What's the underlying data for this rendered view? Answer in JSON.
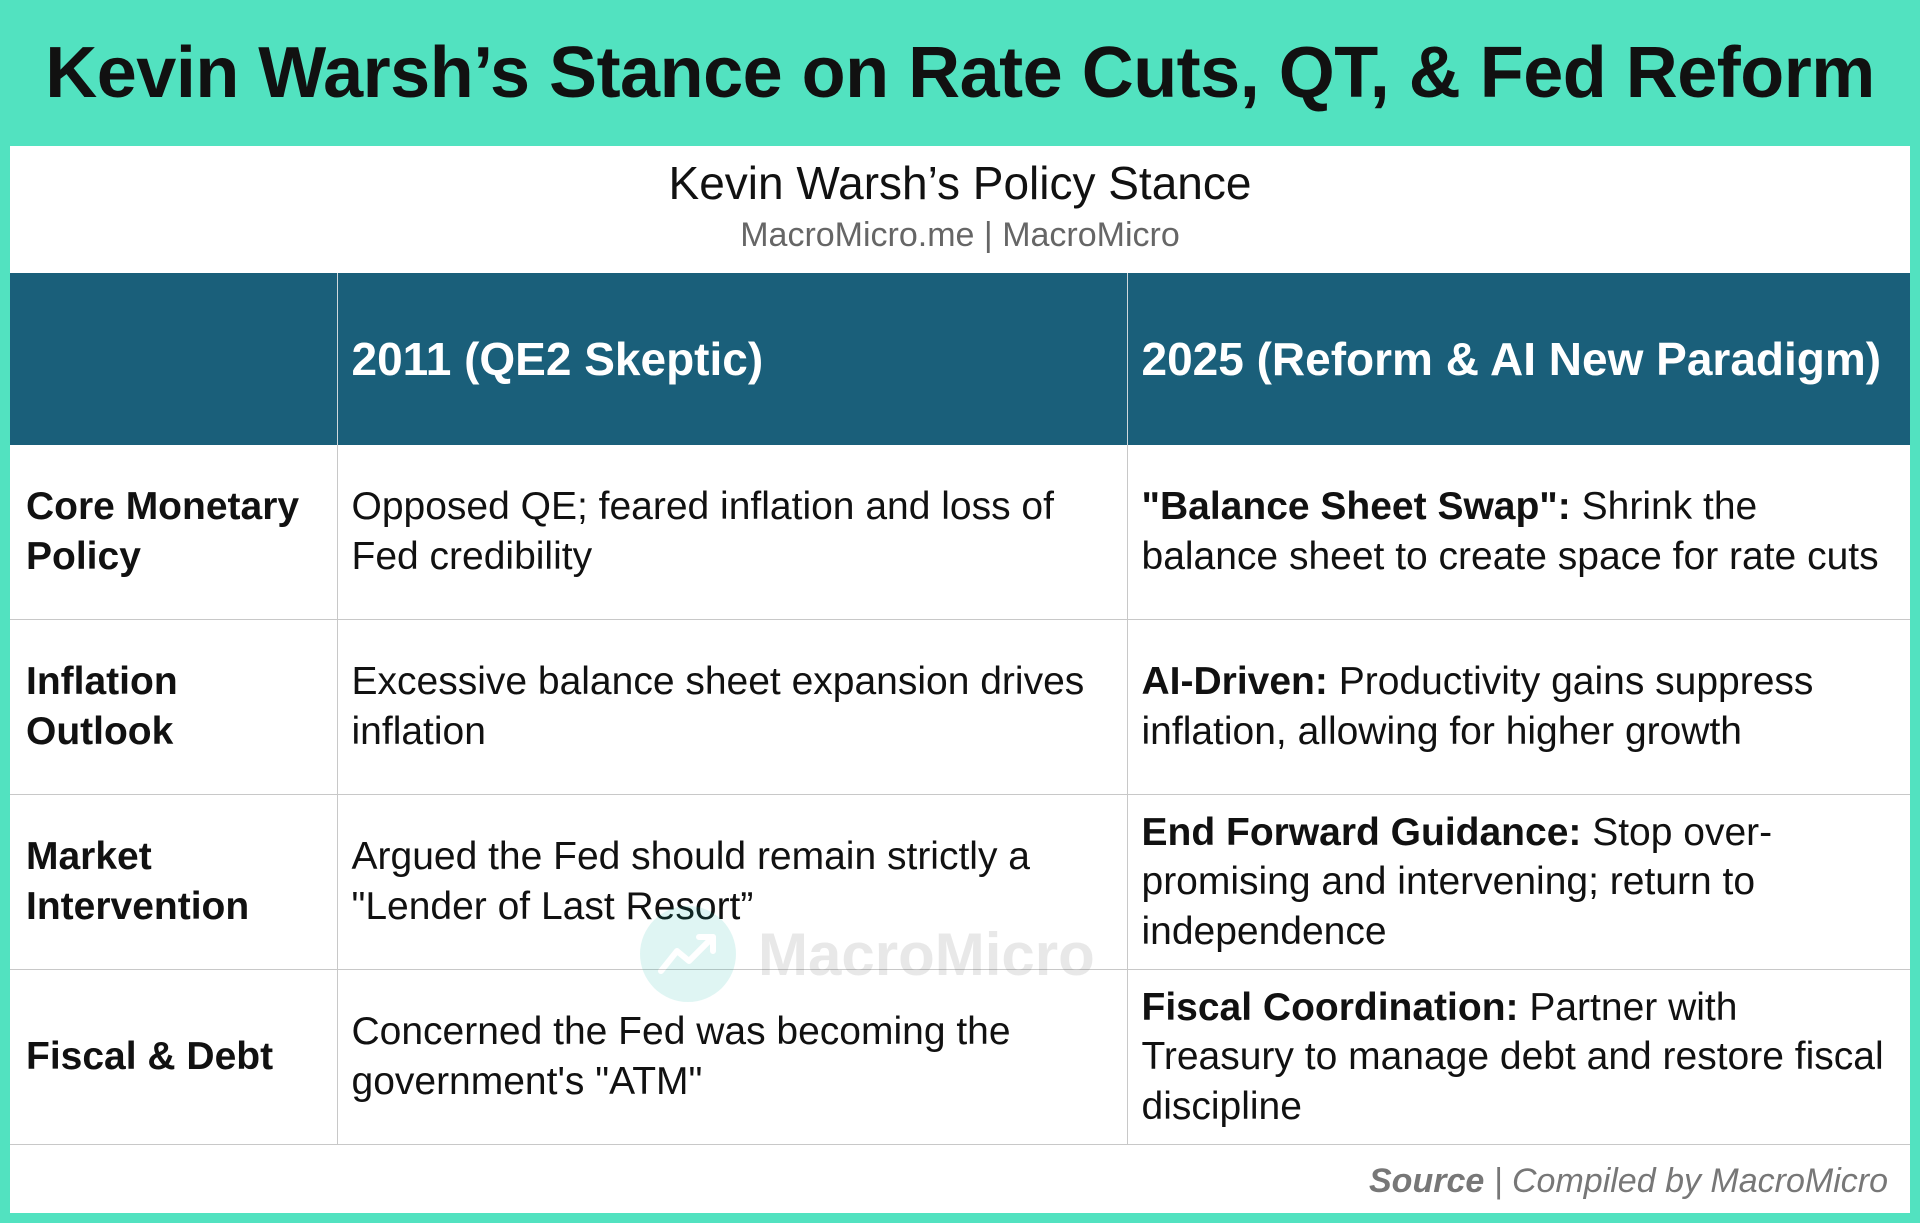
{
  "title": "Kevin Warsh’s Stance on Rate Cuts, QT, & Fed Reform",
  "subtitle": "Kevin Warsh’s Policy Stance",
  "source_line": "MacroMicro.me | MacroMicro",
  "table": {
    "headers": [
      "",
      "2011 (QE2 Skeptic)",
      "2025 (Reform & AI New Paradigm)"
    ],
    "rows": [
      {
        "label": "Core Monetary Policy",
        "col_2011": "Opposed QE; feared inflation and loss of Fed credibility",
        "col_2025_bold": "\"Balance Sheet Swap\":",
        "col_2025_text": " Shrink the balance sheet to create space for rate cuts"
      },
      {
        "label": "Inflation Outlook",
        "col_2011": "Excessive balance sheet expansion drives inflation",
        "col_2025_bold": "AI-Driven:",
        "col_2025_text": " Productivity gains suppress inflation, allowing for higher growth"
      },
      {
        "label": "Market Intervention",
        "col_2011": "Argued the Fed should remain strictly a \"Lender of Last Resort”",
        "col_2025_bold": "End Forward Guidance:",
        "col_2025_text": " Stop over-promising and intervening; return to independence"
      },
      {
        "label": "Fiscal & Debt",
        "col_2011": "Concerned the Fed was becoming the government's \"ATM\"",
        "col_2025_bold": "Fiscal Coordination:",
        "col_2025_text": " Partner with Treasury to manage debt and restore fiscal discipline"
      }
    ]
  },
  "watermark": "MacroMicro",
  "footer": {
    "source_label": "Source",
    "separator": " | ",
    "compiled": "Compiled by MacroMicro"
  },
  "colors": {
    "accent": "#52e2c0",
    "header_bg": "#1a5f7a"
  }
}
